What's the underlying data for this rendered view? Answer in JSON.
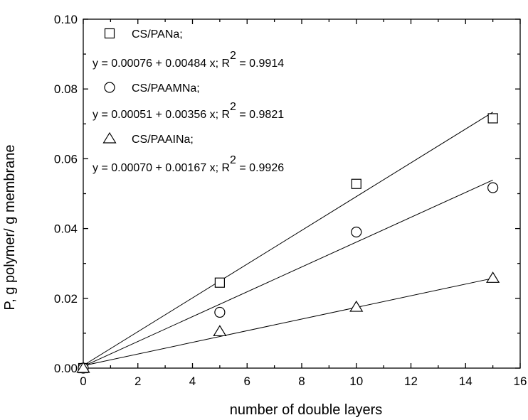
{
  "chart_data": {
    "type": "scatter",
    "xlabel": "number of double layers",
    "ylabel_parts": [
      "P, g polymer",
      "/ g membrane"
    ],
    "xlim": [
      0,
      16
    ],
    "ylim": [
      0,
      0.1
    ],
    "xticks": [
      0,
      2,
      4,
      6,
      8,
      10,
      12,
      14,
      16
    ],
    "xtick_labels": [
      "0",
      "2",
      "4",
      "6",
      "8",
      "10",
      "12",
      "14",
      "16"
    ],
    "yticks": [
      0,
      0.02,
      0.04,
      0.06,
      0.08,
      0.1
    ],
    "ytick_labels": [
      "0.00",
      "0.02",
      "0.04",
      "0.06",
      "0.08",
      "0.10"
    ],
    "series": [
      {
        "name": "CS/PANa;",
        "marker": "square",
        "x": [
          0,
          5,
          10,
          15
        ],
        "y": [
          0.0,
          0.0245,
          0.0528,
          0.0716
        ],
        "fit": {
          "intercept": 0.00076,
          "slope": 0.00484
        },
        "equation": "y = 0.00076 +  0.00484 x; R",
        "r2": "= 0.9914"
      },
      {
        "name": "CS/PAAMNa;",
        "marker": "circle",
        "x": [
          0,
          5,
          10,
          15
        ],
        "y": [
          0.0,
          0.016,
          0.039,
          0.0517
        ],
        "fit": {
          "intercept": 0.00051,
          "slope": 0.00356
        },
        "equation": "y = 0.00051 +  0.00356 x; R",
        "r2": "= 0.9821"
      },
      {
        "name": "CS/PAAINa;",
        "marker": "triangle",
        "x": [
          0,
          5,
          10,
          15
        ],
        "y": [
          0.0,
          0.0105,
          0.0175,
          0.0258
        ],
        "fit": {
          "intercept": 0.0007,
          "slope": 0.00167
        },
        "equation": "y = 0.00070 +  0.00167 x; R",
        "r2": "= 0.9926"
      }
    ],
    "superscript": "2",
    "legend_position": "top-left",
    "grid": false
  }
}
